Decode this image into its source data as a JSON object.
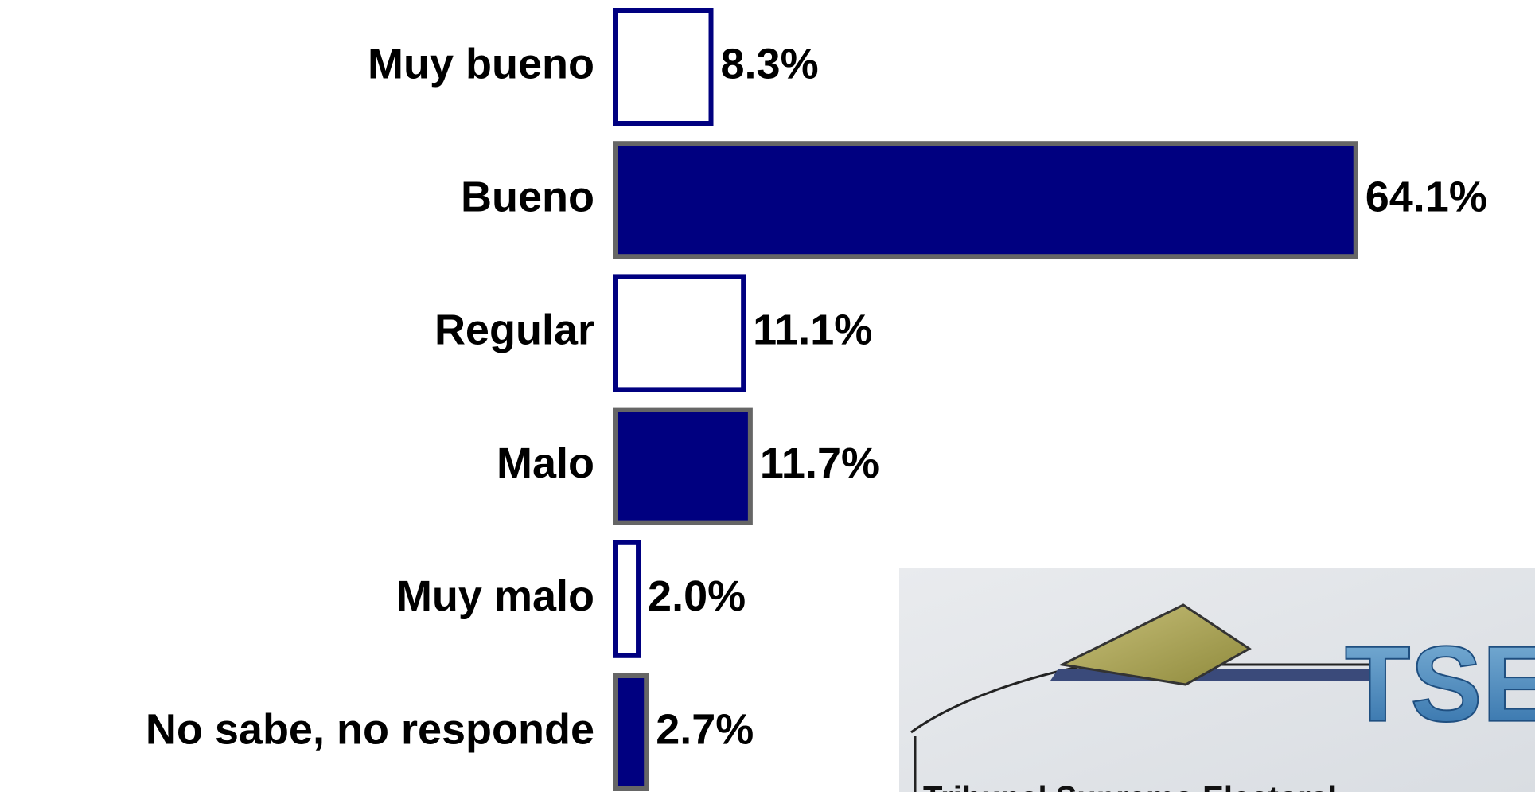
{
  "chart_data": {
    "type": "bar",
    "orientation": "horizontal",
    "categories": [
      "Muy bueno",
      "Bueno",
      "Regular",
      "Malo",
      "Muy malo",
      "No sabe, no responde"
    ],
    "values": [
      8.3,
      64.1,
      11.1,
      11.7,
      2.0,
      2.7
    ],
    "value_labels": [
      "8.3%",
      "64.1%",
      "11.1%",
      "11.7%",
      "2.0%",
      "2.7%"
    ],
    "fill_colors": [
      "#ffffff",
      "#000080",
      "#ffffff",
      "#000080",
      "#ffffff",
      "#000080"
    ],
    "border_colors": [
      "#000080",
      "#666666",
      "#000080",
      "#666666",
      "#000080",
      "#666666"
    ]
  },
  "logo": {
    "acronym": "TSE",
    "name": "Tribunal Supremo Electoral"
  }
}
